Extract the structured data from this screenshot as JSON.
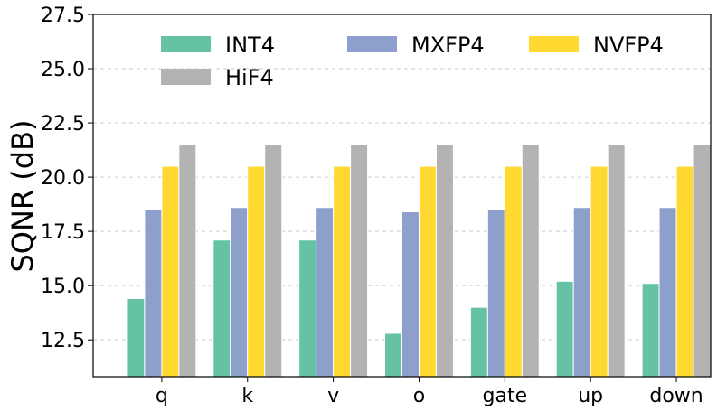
{
  "chart_data": {
    "type": "bar",
    "title": "",
    "xlabel": "",
    "ylabel": "SQNR (dB)",
    "categories": [
      "q",
      "k",
      "v",
      "o",
      "gate",
      "up",
      "down"
    ],
    "series": [
      {
        "name": "INT4",
        "color": "#66c2a5",
        "values": [
          14.4,
          17.1,
          17.1,
          12.8,
          14.0,
          15.2,
          15.1
        ]
      },
      {
        "name": "MXFP4",
        "color": "#8da0cb",
        "values": [
          18.5,
          18.6,
          18.6,
          18.4,
          18.5,
          18.6,
          18.6
        ]
      },
      {
        "name": "NVFP4",
        "color": "#ffd92f",
        "values": [
          20.5,
          20.5,
          20.5,
          20.5,
          20.5,
          20.5,
          20.5
        ]
      },
      {
        "name": "HiF4",
        "color": "#b3b3b3",
        "values": [
          21.5,
          21.5,
          21.5,
          21.5,
          21.5,
          21.5,
          21.5
        ]
      }
    ],
    "ylim": [
      10.8,
      27.5
    ],
    "yticks": [
      "12.5",
      "15.0",
      "17.5",
      "20.0",
      "22.5",
      "25.0",
      "27.5"
    ],
    "grid": "horizontal dashed",
    "legend_position": "top"
  }
}
